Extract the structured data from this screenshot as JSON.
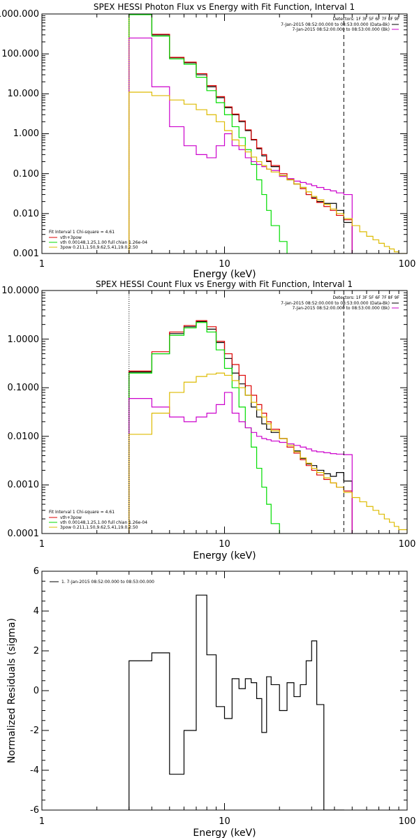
{
  "chart_data": [
    {
      "type": "line",
      "title": "SPEX HESSI Photon Flux vs Energy with Fit Function, Interval 1",
      "xlabel": "Energy (keV)",
      "ylabel": "",
      "xscale": "log",
      "yscale": "log",
      "xlim": [
        1,
        100
      ],
      "ylim": [
        0.001,
        1000
      ],
      "x_tick_labels": [
        "1",
        "10",
        "100"
      ],
      "y_tick_labels": [
        "0.001",
        "0.010",
        "0.100",
        "1.000",
        "10.000",
        "100.000",
        "1000.000"
      ],
      "legend_tr": {
        "title": "Detectors: 1F 3F 5F 6F 7F 8F 9F",
        "entries": [
          "7-Jan-2015 08:52:00.000 to 08:53:00.000 (Data-Bk)",
          "7-Jan-2015 08:52:00.000 to 08:53:00.000 (Bk)"
        ]
      },
      "legend_bl": {
        "title": "Fit Interval 1   Chi-square = 4.61",
        "entries": [
          "vth+3pow",
          "vth 0.00148,1.25,1.00  full chian 1.26e-04",
          "3pow 0.211,1.50,9.62,5.41,19.0,2.50"
        ]
      },
      "edges": [
        3,
        4,
        5,
        6,
        7,
        8,
        9,
        10,
        11,
        12,
        13,
        14,
        15,
        16,
        17,
        18,
        20,
        22,
        24,
        26,
        28,
        30,
        32,
        35,
        38,
        41,
        45,
        50,
        55,
        60,
        65,
        70,
        75,
        80,
        85,
        90,
        100
      ],
      "series": [
        {
          "name": "Data-Bk",
          "color": "#000000",
          "style": "hist",
          "values": [
            1000,
            300,
            80,
            60,
            30,
            15,
            8,
            4.5,
            3,
            2,
            1.2,
            0.7,
            0.42,
            0.28,
            0.2,
            0.15,
            0.09,
            0.07,
            0.055,
            0.045,
            0.03,
            0.025,
            0.02,
            0.018,
            0.018,
            0.012,
            0.006
          ]
        },
        {
          "name": "vth+3pow",
          "color": "#dd0000",
          "style": "hist",
          "values": [
            980,
            310,
            82,
            62,
            32,
            16,
            8.5,
            4.7,
            3.1,
            2.1,
            1.25,
            0.72,
            0.44,
            0.3,
            0.21,
            0.16,
            0.1,
            0.072,
            0.055,
            0.042,
            0.03,
            0.024,
            0.019,
            0.015,
            0.012,
            0.009,
            0.007
          ]
        },
        {
          "name": "vth",
          "color": "#00dd00",
          "style": "hist",
          "values": [
            960,
            280,
            75,
            55,
            26,
            12,
            6,
            3,
            1.5,
            0.8,
            0.4,
            0.17,
            0.07,
            0.03,
            0.012,
            0.005,
            0.002,
            0.0008,
            0.0008,
            0.0008,
            0.0008,
            0.0008,
            0.0008,
            0.0008,
            0.0008,
            0.0008,
            0.0008
          ]
        },
        {
          "name": "Bk",
          "color": "#cc00cc",
          "style": "hist",
          "values": [
            250,
            15,
            1.5,
            0.5,
            0.3,
            0.25,
            0.5,
            1,
            0.5,
            0.4,
            0.25,
            0.2,
            0.17,
            0.15,
            0.13,
            0.12,
            0.085,
            0.075,
            0.065,
            0.06,
            0.055,
            0.05,
            0.045,
            0.04,
            0.037,
            0.033,
            0.03
          ]
        },
        {
          "name": "3pow",
          "color": "#ddbb00",
          "style": "hist",
          "values": [
            11,
            9,
            7,
            5.5,
            4,
            3,
            2,
            1.2,
            0.7,
            0.5,
            0.35,
            0.26,
            0.2,
            0.16,
            0.13,
            0.11,
            0.09,
            0.07,
            0.055,
            0.045,
            0.035,
            0.027,
            0.022,
            0.017,
            0.013,
            0.01,
            0.0075,
            0.005,
            0.0035,
            0.0027,
            0.0022,
            0.0018,
            0.0015,
            0.0013,
            0.0011,
            0.001
          ]
        }
      ],
      "vlines": [
        {
          "x": 3,
          "color": "#ddbb00",
          "dash": "dotted"
        },
        {
          "x": 45,
          "color": "#000000",
          "dash": "dashed"
        }
      ]
    },
    {
      "type": "line",
      "title": "SPEX HESSI Count Flux vs Energy with Fit Function, Interval 1",
      "xlabel": "Energy (keV)",
      "ylabel": "",
      "xscale": "log",
      "yscale": "log",
      "xlim": [
        1,
        100
      ],
      "ylim": [
        0.0001,
        10
      ],
      "x_tick_labels": [
        "1",
        "10",
        "100"
      ],
      "y_tick_labels": [
        "0.0001",
        "0.0010",
        "0.0100",
        "0.1000",
        "1.0000",
        "10.0000"
      ],
      "legend_tr": {
        "title": "Detectors: 1F 3F 5F 6F 7F 8F 9F",
        "entries": [
          "7-Jan-2015 08:52:00.000 to 08:53:00.000 (Data-Bk)",
          "7-Jan-2015 08:52:00.000 to 08:53:00.000 (Bk)"
        ]
      },
      "legend_bl": {
        "title": "Fit Interval 1   Chi-square = 4.61",
        "entries": [
          "vth+3pow",
          "vth 0.00148,1.25,1.00  full chian 1.26e-04",
          "3pow 0.211,1.50,9.62,5.41,19.0,2.50"
        ]
      },
      "edges": [
        3,
        4,
        5,
        6,
        7,
        8,
        9,
        10,
        11,
        12,
        13,
        14,
        15,
        16,
        17,
        18,
        20,
        22,
        24,
        26,
        28,
        30,
        32,
        35,
        38,
        41,
        45,
        50,
        55,
        60,
        65,
        70,
        75,
        80,
        85,
        90,
        100
      ],
      "series": [
        {
          "name": "Data-Bk",
          "color": "#000000",
          "style": "hist",
          "values": [
            0.21,
            0.5,
            1.3,
            1.8,
            2.3,
            1.6,
            0.85,
            0.4,
            0.2,
            0.12,
            0.07,
            0.04,
            0.025,
            0.018,
            0.014,
            0.012,
            0.009,
            0.007,
            0.005,
            0.0035,
            0.0027,
            0.0025,
            0.002,
            0.0017,
            0.0015,
            0.0018,
            0.0012
          ]
        },
        {
          "name": "vth+3pow",
          "color": "#dd0000",
          "style": "hist",
          "values": [
            0.22,
            0.55,
            1.4,
            1.9,
            2.4,
            1.8,
            0.9,
            0.5,
            0.3,
            0.18,
            0.11,
            0.07,
            0.045,
            0.03,
            0.02,
            0.014,
            0.009,
            0.006,
            0.0045,
            0.0033,
            0.0025,
            0.002,
            0.0016,
            0.0013,
            0.0011,
            0.0009,
            0.00075
          ]
        },
        {
          "name": "vth",
          "color": "#00dd00",
          "style": "hist",
          "values": [
            0.2,
            0.5,
            1.2,
            1.7,
            2.2,
            1.4,
            0.6,
            0.25,
            0.1,
            0.04,
            0.015,
            0.006,
            0.0022,
            0.0009,
            0.0004,
            0.00016,
            8e-05,
            8e-05,
            8e-05,
            8e-05,
            8e-05,
            8e-05,
            8e-05,
            8e-05,
            8e-05,
            8e-05,
            8e-05
          ]
        },
        {
          "name": "Bk",
          "color": "#cc00cc",
          "style": "hist",
          "values": [
            0.06,
            0.04,
            0.025,
            0.02,
            0.025,
            0.03,
            0.045,
            0.08,
            0.03,
            0.02,
            0.015,
            0.012,
            0.01,
            0.009,
            0.0085,
            0.008,
            0.0075,
            0.007,
            0.0065,
            0.006,
            0.0055,
            0.005,
            0.0048,
            0.0046,
            0.0044,
            0.0043,
            0.0042
          ]
        },
        {
          "name": "3pow",
          "color": "#ddbb00",
          "style": "hist",
          "values": [
            0.011,
            0.03,
            0.08,
            0.13,
            0.17,
            0.19,
            0.2,
            0.18,
            0.14,
            0.1,
            0.07,
            0.05,
            0.035,
            0.025,
            0.018,
            0.013,
            0.009,
            0.0065,
            0.0048,
            0.0036,
            0.0028,
            0.0022,
            0.0018,
            0.0014,
            0.0011,
            0.0009,
            0.0007,
            0.00055,
            0.00045,
            0.00036,
            0.0003,
            0.00025,
            0.0002,
            0.00017,
            0.00014,
            0.00012
          ]
        }
      ],
      "vlines": [
        {
          "x": 3,
          "color": "#000000",
          "dash": "dotted"
        },
        {
          "x": 45,
          "color": "#000000",
          "dash": "dashed"
        }
      ]
    },
    {
      "type": "line",
      "title": "",
      "xlabel": "Energy (keV)",
      "ylabel": "Normalized Residuals (sigma)",
      "xscale": "log",
      "yscale": "linear",
      "xlim": [
        1,
        100
      ],
      "ylim": [
        -6,
        6
      ],
      "x_tick_labels": [
        "1",
        "10",
        "100"
      ],
      "y_tick_labels": [
        "-6",
        "-4",
        "-2",
        "0",
        "2",
        "4",
        "6"
      ],
      "legend_tl": {
        "entries": [
          "1.  7-Jan-2015 08:52:00.000 to 08:53:00.000"
        ]
      },
      "edges": [
        3,
        4,
        5,
        6,
        7,
        8,
        9,
        10,
        11,
        12,
        13,
        14,
        15,
        16,
        17,
        18,
        20,
        22,
        24,
        26,
        28,
        30,
        32,
        35,
        38,
        41,
        45
      ],
      "series": [
        {
          "name": "1.  7-Jan-2015 08:52:00.000 to 08:53:00.000",
          "color": "#000000",
          "style": "hist",
          "values": [
            1.5,
            1.9,
            -4.2,
            -2.0,
            4.8,
            1.8,
            -0.8,
            -1.4,
            0.6,
            0.1,
            0.6,
            0.4,
            -0.4,
            -2.1,
            0.7,
            0.3,
            -1.0,
            0.4,
            -0.3,
            0.3,
            1.5,
            2.5,
            -0.7,
            -6,
            -6,
            -6
          ]
        }
      ],
      "vlines": []
    }
  ]
}
